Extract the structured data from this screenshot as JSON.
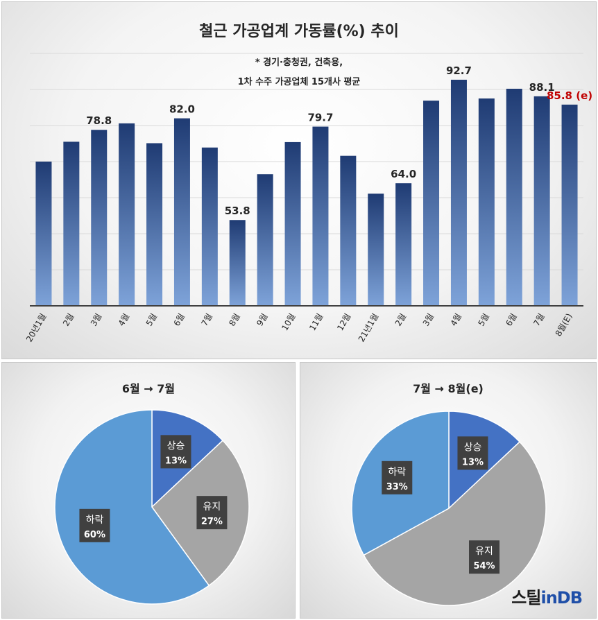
{
  "chart_data": [
    {
      "type": "bar",
      "title": "철근 가공업계 가동률(%) 추이",
      "notes": [
        "* 경기·충청권, 건축용,",
        "1차 수주 가공업체 15개사 평균"
      ],
      "categories": [
        "20년1월",
        "2월",
        "3월",
        "4월",
        "5월",
        "6월",
        "7월",
        "8월",
        "9월",
        "10월",
        "11월",
        "12월",
        "21년1월",
        "2월",
        "3월",
        "4월",
        "5월",
        "6월",
        "7월",
        "8월(E)"
      ],
      "values": [
        70.0,
        75.5,
        78.8,
        80.6,
        75.1,
        82.0,
        73.9,
        53.8,
        66.5,
        75.4,
        79.7,
        71.6,
        61.1,
        64.0,
        86.9,
        92.7,
        87.5,
        90.2,
        88.1,
        85.8
      ],
      "data_labels": {
        "2": "78.8",
        "5": "82.0",
        "7": "53.8",
        "10": "79.7",
        "13": "64.0",
        "15": "92.7",
        "18": "88.1",
        "19": "85.8 (e)"
      },
      "estimate_label_color": "#c00000",
      "ylim": [
        30,
        100
      ],
      "grid": true,
      "bar_color_top": "#1f3b73",
      "bar_color_bottom": "#7ea3d9"
    },
    {
      "type": "pie",
      "title": "6월 → 7월",
      "slices": [
        {
          "label": "상승",
          "value": 13,
          "pct": "13%",
          "color": "#4472c4"
        },
        {
          "label": "유지",
          "value": 27,
          "pct": "27%",
          "color": "#a5a5a5"
        },
        {
          "label": "하락",
          "value": 60,
          "pct": "60%",
          "color": "#5b9bd5"
        }
      ]
    },
    {
      "type": "pie",
      "title": "7월 → 8월(e)",
      "slices": [
        {
          "label": "상승",
          "value": 13,
          "pct": "13%",
          "color": "#4472c4"
        },
        {
          "label": "유지",
          "value": 54,
          "pct": "54%",
          "color": "#a5a5a5"
        },
        {
          "label": "하락",
          "value": 33,
          "pct": "33%",
          "color": "#5b9bd5"
        }
      ]
    }
  ],
  "logo": {
    "part1": "스틸",
    "part2": "inDB"
  }
}
